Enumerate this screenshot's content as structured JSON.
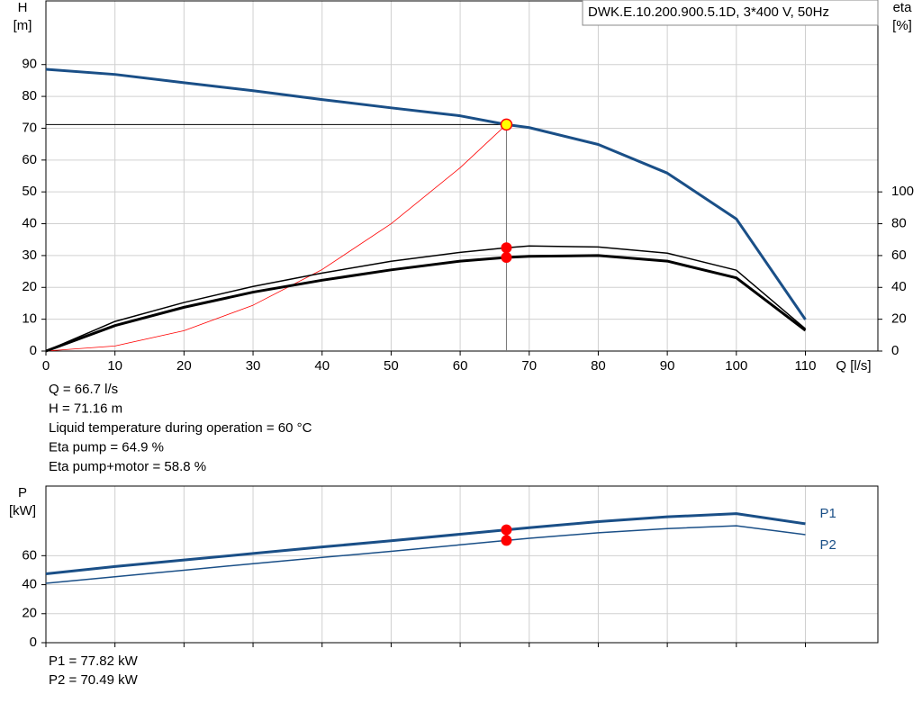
{
  "chart_data": [
    {
      "type": "line",
      "title": "DWK.E.10.200.900.5.1D, 3*400 V, 50Hz",
      "y_label": "H",
      "y_unit": "[m]",
      "y2_label": "eta",
      "y2_unit": "[%]",
      "x_label": "Q [l/s]",
      "x": [
        0,
        10,
        20,
        30,
        40,
        50,
        60,
        66.7,
        70,
        80,
        90,
        100,
        110
      ],
      "xlim": [
        0,
        120.5
      ],
      "xticks": [
        0,
        10,
        20,
        30,
        40,
        50,
        60,
        70,
        80,
        90,
        100,
        110
      ],
      "ylim": [
        0,
        110
      ],
      "yticks": [
        0,
        10,
        20,
        30,
        40,
        50,
        60,
        70,
        80,
        90
      ],
      "y2lim": [
        0,
        220
      ],
      "y2ticks": [
        0,
        20,
        40,
        60,
        80,
        100
      ],
      "grid": true,
      "series": [
        {
          "color": "#1a4f87",
          "line_width": 3,
          "values": [
            88.5,
            86.9,
            84.3,
            81.8,
            79,
            76.4,
            73.9,
            71.16,
            70.2,
            64.9,
            55.9,
            41.5,
            9.9
          ]
        },
        {
          "color": "#ff0000",
          "line_width": 0.8,
          "values": [
            0,
            1.6,
            6.4,
            14.4,
            25.6,
            40,
            57.6,
            71.16,
            null,
            null,
            null,
            null,
            null
          ]
        },
        {
          "color": "#000000",
          "line_width": 1.5,
          "axis": "y2",
          "values": [
            0,
            18.6,
            30.5,
            40.6,
            49,
            56.4,
            62,
            64.9,
            66,
            65.4,
            61.5,
            50.8,
            14
          ]
        },
        {
          "color": "#000000",
          "line_width": 3,
          "axis": "y2",
          "values": [
            0,
            16,
            27.5,
            37,
            44.5,
            51,
            56.5,
            58.8,
            59.5,
            60,
            56.5,
            46,
            13
          ]
        }
      ],
      "duty_point": {
        "x": 66.7,
        "y": 71.16,
        "color": "#ffff00"
      },
      "marker_color": "#ff0000",
      "annotations": [
        "Q = 66.7 l/s",
        "H = 71.16 m",
        "Liquid temperature during operation = 60 °C",
        "Eta pump = 64.9 %",
        "Eta pump+motor = 58.8 %"
      ]
    },
    {
      "type": "line",
      "y_label": "P",
      "y_unit": "[kW]",
      "x": [
        0,
        10,
        20,
        30,
        40,
        50,
        60,
        66.7,
        70,
        80,
        90,
        100,
        110
      ],
      "xlim": [
        0,
        120.5
      ],
      "xticks": [
        0,
        10,
        20,
        30,
        40,
        50,
        60,
        70,
        80,
        90,
        100,
        110
      ],
      "ylim": [
        0,
        108
      ],
      "yticks": [
        0,
        20,
        40,
        60
      ],
      "grid": true,
      "series": [
        {
          "name": "P1",
          "color": "#1a4f87",
          "line_width": 3,
          "values": [
            47.5,
            52.5,
            57,
            61.5,
            66,
            70.3,
            74.8,
            77.82,
            79.3,
            83.5,
            86.8,
            89,
            82
          ]
        },
        {
          "name": "P2",
          "color": "#1a4f87",
          "line_width": 1.5,
          "values": [
            41,
            45.5,
            50,
            54.5,
            58.8,
            63,
            67.5,
            70.49,
            72,
            75.8,
            78.7,
            80.6,
            74.5
          ]
        }
      ],
      "duty_x": 66.7,
      "marker_color": "#ff0000",
      "annotations": [
        "P1 = 77.82 kW",
        "P2 = 70.49 kW"
      ]
    }
  ]
}
